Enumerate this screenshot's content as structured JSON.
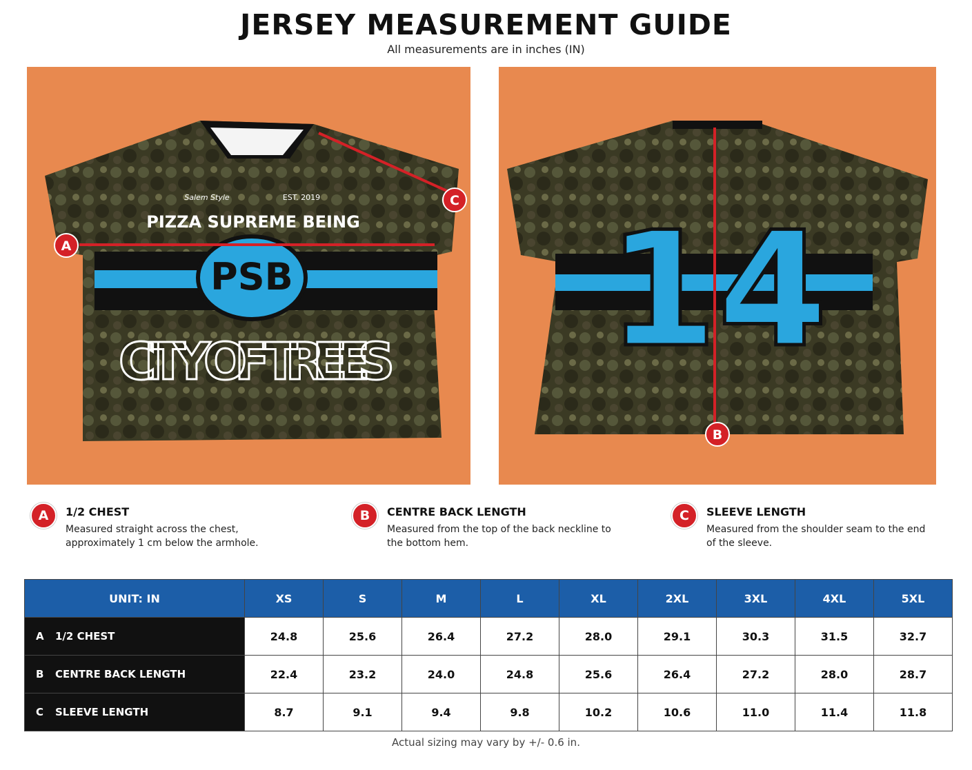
{
  "header": {
    "title": "JERSEY MEASUREMENT GUIDE",
    "subtitle": "All measurements are in inches (IN)"
  },
  "front_photo": {
    "brand": "Salem Style",
    "est": "EST. 2019",
    "name": "PIZZA SUPREME BEING",
    "logo": "PSB",
    "slogan": "CITY OF TREES",
    "markers": [
      "A",
      "C"
    ]
  },
  "back_photo": {
    "number": "14",
    "markers": [
      "B"
    ]
  },
  "legend": [
    {
      "marker": "A",
      "title": "1/2 CHEST",
      "description": [
        "Measured straight across the chest,",
        "approximately 1 cm below the armhole."
      ]
    },
    {
      "marker": "B",
      "title": "CENTRE BACK LENGTH",
      "description": [
        "Measured from the top of the back neckline to",
        "the bottom hem."
      ]
    },
    {
      "marker": "C",
      "title": "SLEEVE LENGTH",
      "description": [
        "Measured from the shoulder seam to the end",
        "of the sleeve."
      ]
    }
  ],
  "table": {
    "header": [
      "UNIT: IN",
      "XS",
      "S",
      "M",
      "L",
      "XL",
      "2XL",
      "3XL",
      "4XL",
      "5XL"
    ],
    "rows": [
      [
        "A",
        "1/2 CHEST",
        "24.8",
        "25.6",
        "26.4",
        "27.2",
        "28.0",
        "29.1",
        "30.3",
        "31.5",
        "32.7"
      ],
      [
        "B",
        "CENTRE BACK LENGTH",
        "22.4",
        "23.2",
        "24.0",
        "24.8",
        "25.6",
        "26.4",
        "27.2",
        "28.0",
        "28.7"
      ],
      [
        "C",
        "SLEEVE LENGTH",
        "8.7",
        "9.1",
        "9.4",
        "9.8",
        "10.2",
        "10.6",
        "11.0",
        "11.4",
        "11.8"
      ]
    ]
  },
  "footnote": "Actual sizing may vary by +/- 0.6 in."
}
